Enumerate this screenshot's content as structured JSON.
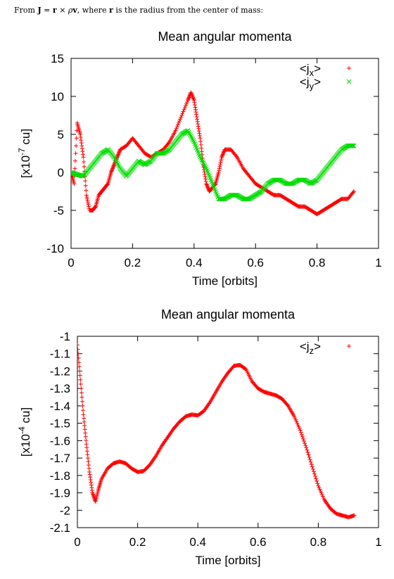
{
  "caption": {
    "prefix": "From",
    "J": "J",
    "eq": "=",
    "r": "r",
    "cross": "×",
    "rho": "ρ",
    "v": "v",
    "middle": ", where",
    "r2": "r",
    "suffix": "is the radius from the center of mass:"
  },
  "chart_data": [
    {
      "type": "scatter",
      "title": "Mean angular momenta",
      "xlabel": "Time [orbits]",
      "ylabel_prefix": "[x10",
      "ylabel_exp": "-7",
      "ylabel_suffix": " cu]",
      "xlim": [
        0,
        1
      ],
      "ylim": [
        -10,
        15
      ],
      "xticks": [
        0,
        0.2,
        0.4,
        0.6,
        0.8,
        1
      ],
      "xtick_labels": [
        "0",
        "0.2",
        "0.4",
        "0.6",
        "0.8",
        "1"
      ],
      "yticks": [
        -10,
        -5,
        0,
        5,
        10,
        15
      ],
      "ytick_labels": [
        "-10",
        "-5",
        "0",
        "5",
        "10",
        "15"
      ],
      "legend_position": "top-right",
      "series": [
        {
          "name": "<jx>",
          "legend_base": "<j",
          "legend_sub": "x",
          "legend_close": ">",
          "marker": "+",
          "color": "#ff0000",
          "x": [
            0.0,
            0.01,
            0.02,
            0.03,
            0.04,
            0.05,
            0.06,
            0.07,
            0.08,
            0.09,
            0.1,
            0.11,
            0.12,
            0.13,
            0.14,
            0.15,
            0.16,
            0.18,
            0.2,
            0.22,
            0.24,
            0.26,
            0.28,
            0.3,
            0.32,
            0.34,
            0.36,
            0.38,
            0.39,
            0.4,
            0.41,
            0.42,
            0.43,
            0.44,
            0.45,
            0.46,
            0.47,
            0.48,
            0.49,
            0.5,
            0.52,
            0.54,
            0.56,
            0.58,
            0.6,
            0.62,
            0.64,
            0.66,
            0.68,
            0.7,
            0.72,
            0.74,
            0.76,
            0.78,
            0.8,
            0.82,
            0.84,
            0.86,
            0.88,
            0.9,
            0.92
          ],
          "values": [
            0.0,
            -1.5,
            6.5,
            5.0,
            2.0,
            -3.0,
            -5.0,
            -5.0,
            -4.5,
            -3.0,
            -2.5,
            -2.0,
            -1.5,
            0.0,
            1.0,
            2.0,
            3.0,
            3.5,
            4.5,
            3.5,
            2.5,
            2.0,
            2.5,
            3.0,
            4.0,
            5.5,
            7.5,
            9.5,
            10.5,
            9.5,
            7.0,
            4.5,
            1.0,
            -1.5,
            -2.5,
            -2.0,
            -1.5,
            0.0,
            2.0,
            3.0,
            3.0,
            2.0,
            0.5,
            -0.5,
            -1.5,
            -2.0,
            -2.5,
            -3.0,
            -3.0,
            -3.5,
            -4.0,
            -4.5,
            -4.5,
            -5.0,
            -5.5,
            -5.0,
            -4.5,
            -4.0,
            -3.5,
            -3.5,
            -2.5
          ]
        },
        {
          "name": "<jy>",
          "legend_base": "<j",
          "legend_sub": "y",
          "legend_close": ">",
          "marker": "x",
          "color": "#00dd00",
          "x": [
            0.0,
            0.02,
            0.04,
            0.06,
            0.08,
            0.1,
            0.12,
            0.14,
            0.16,
            0.18,
            0.2,
            0.22,
            0.24,
            0.26,
            0.28,
            0.3,
            0.32,
            0.34,
            0.36,
            0.38,
            0.4,
            0.42,
            0.44,
            0.46,
            0.48,
            0.5,
            0.52,
            0.54,
            0.56,
            0.58,
            0.6,
            0.62,
            0.64,
            0.66,
            0.68,
            0.7,
            0.72,
            0.74,
            0.76,
            0.78,
            0.8,
            0.82,
            0.84,
            0.86,
            0.88,
            0.9,
            0.92
          ],
          "values": [
            0.0,
            -0.3,
            -0.5,
            0.5,
            1.5,
            2.5,
            3.0,
            2.0,
            0.5,
            -0.5,
            0.5,
            1.5,
            1.0,
            1.5,
            2.5,
            2.5,
            3.0,
            4.0,
            5.0,
            5.5,
            4.0,
            2.0,
            0.5,
            -1.5,
            -3.5,
            -3.5,
            -3.0,
            -3.0,
            -3.5,
            -3.5,
            -3.0,
            -2.5,
            -1.5,
            -1.0,
            -1.0,
            -1.5,
            -1.5,
            -1.0,
            -1.0,
            -1.5,
            -1.0,
            0.0,
            1.0,
            2.0,
            3.0,
            3.5,
            3.5
          ]
        }
      ]
    },
    {
      "type": "scatter",
      "title": "Mean angular momenta",
      "xlabel": "Time [orbits]",
      "ylabel_prefix": "[x10",
      "ylabel_exp": "-4",
      "ylabel_suffix": " cu]",
      "xlim": [
        0,
        1
      ],
      "ylim": [
        -2.1,
        -1
      ],
      "xticks": [
        0,
        0.2,
        0.4,
        0.6,
        0.8,
        1
      ],
      "xtick_labels": [
        "0",
        "0.2",
        "0.4",
        "0.6",
        "0.8",
        "1"
      ],
      "yticks": [
        -2.1,
        -2,
        -1.9,
        -1.8,
        -1.7,
        -1.6,
        -1.5,
        -1.4,
        -1.3,
        -1.2,
        -1.1,
        -1
      ],
      "ytick_labels": [
        "-2.1",
        "-2",
        "-1.9",
        "-1.8",
        "-1.7",
        "-1.6",
        "-1.5",
        "-1.4",
        "-1.3",
        "-1.2",
        "-1.1",
        "-1"
      ],
      "legend_position": "top-right",
      "series": [
        {
          "name": "<jz>",
          "legend_base": "<j",
          "legend_sub": "z",
          "legend_close": ">",
          "marker": "+",
          "color": "#ff0000",
          "x": [
            0.0,
            0.01,
            0.02,
            0.03,
            0.04,
            0.05,
            0.06,
            0.07,
            0.08,
            0.1,
            0.12,
            0.14,
            0.16,
            0.18,
            0.2,
            0.22,
            0.24,
            0.26,
            0.28,
            0.3,
            0.32,
            0.34,
            0.36,
            0.38,
            0.4,
            0.42,
            0.44,
            0.46,
            0.48,
            0.5,
            0.52,
            0.54,
            0.56,
            0.58,
            0.6,
            0.62,
            0.64,
            0.66,
            0.68,
            0.7,
            0.72,
            0.74,
            0.76,
            0.78,
            0.8,
            0.82,
            0.84,
            0.86,
            0.88,
            0.9,
            0.92
          ],
          "values": [
            -1.05,
            -1.25,
            -1.45,
            -1.62,
            -1.78,
            -1.9,
            -1.95,
            -1.88,
            -1.82,
            -1.76,
            -1.73,
            -1.72,
            -1.73,
            -1.76,
            -1.78,
            -1.775,
            -1.74,
            -1.69,
            -1.63,
            -1.58,
            -1.53,
            -1.49,
            -1.46,
            -1.45,
            -1.455,
            -1.43,
            -1.38,
            -1.32,
            -1.26,
            -1.21,
            -1.17,
            -1.165,
            -1.19,
            -1.26,
            -1.3,
            -1.32,
            -1.33,
            -1.34,
            -1.36,
            -1.4,
            -1.46,
            -1.54,
            -1.64,
            -1.75,
            -1.86,
            -1.94,
            -1.99,
            -2.02,
            -2.03,
            -2.04,
            -2.03
          ]
        }
      ]
    }
  ]
}
